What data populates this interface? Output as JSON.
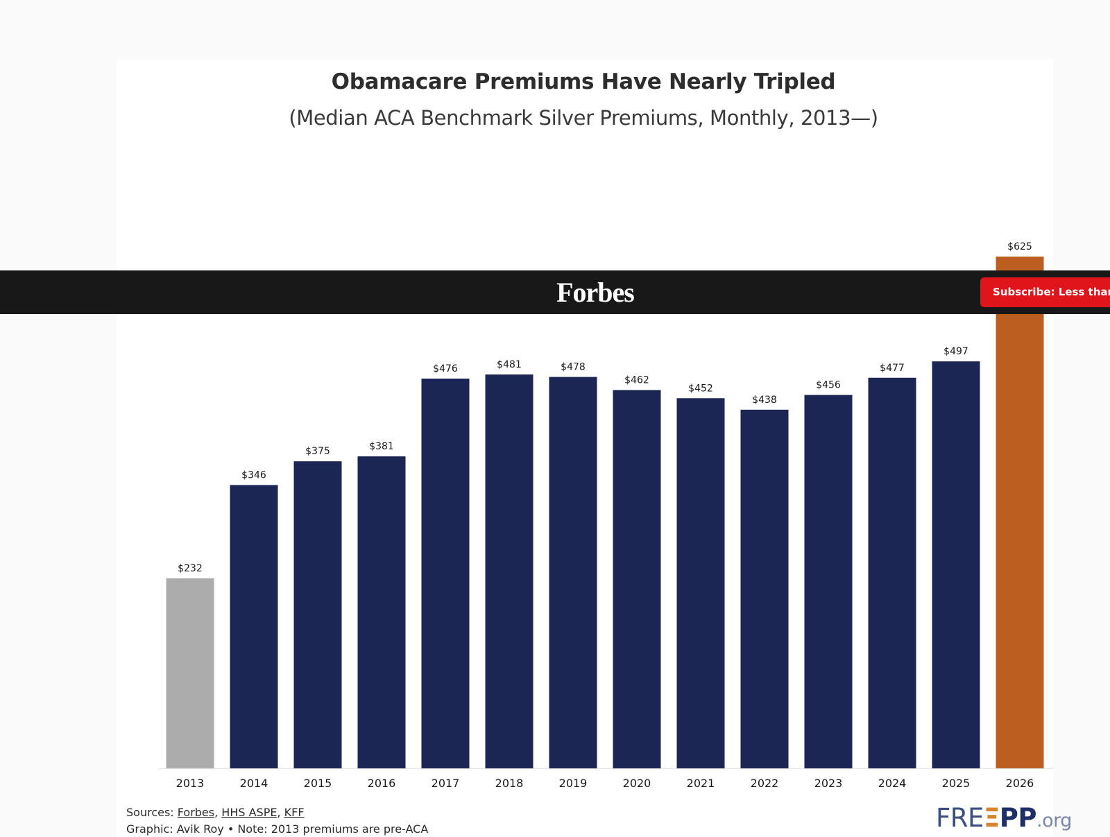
{
  "chart_data": {
    "type": "bar",
    "title": "Obamacare Premiums Have Nearly Tripled",
    "subtitle": "(Median ACA Benchmark Silver Premiums, Monthly, 2013—)",
    "categories": [
      "2013",
      "2014",
      "2015",
      "2016",
      "2017",
      "2018",
      "2019",
      "2020",
      "2021",
      "2022",
      "2023",
      "2024",
      "2025",
      "2026"
    ],
    "values": [
      232,
      346,
      375,
      381,
      476,
      481,
      478,
      462,
      452,
      438,
      456,
      477,
      497,
      625
    ],
    "data_labels": [
      "$232",
      "$346",
      "$375",
      "$381",
      "$476",
      "$481",
      "$478",
      "$462",
      "$452",
      "$438",
      "$456",
      "$477",
      "$497",
      "$625"
    ],
    "bar_colors": [
      "#acacac",
      "#1b2655",
      "#1b2655",
      "#1b2655",
      "#1b2655",
      "#1b2655",
      "#1b2655",
      "#1b2655",
      "#1b2655",
      "#1b2655",
      "#1b2655",
      "#1b2655",
      "#1b2655",
      "#bd5e21"
    ],
    "ylim": [
      0,
      625
    ],
    "grid": false,
    "legend": "none"
  },
  "overlay": {
    "brand": "Forbes",
    "subscribe_label": "Subscribe: Less than $"
  },
  "footer": {
    "sources_prefix": "Sources: ",
    "sources": [
      "Forbes",
      "HHS ASPE",
      "KFF"
    ],
    "sep": ", ",
    "graphic_credit": "Graphic: Avik Roy • Note: 2013 premiums are pre-ACA"
  },
  "logo": {
    "part1": "FRE",
    "part2": "Ξ",
    "part3": "PP",
    "part4": ".org"
  },
  "colors": {
    "navy": "#1b2655",
    "gray": "#acacac",
    "orange": "#bd5e21",
    "forbes_bar": "#181818",
    "subscribe": "#e0151c"
  }
}
